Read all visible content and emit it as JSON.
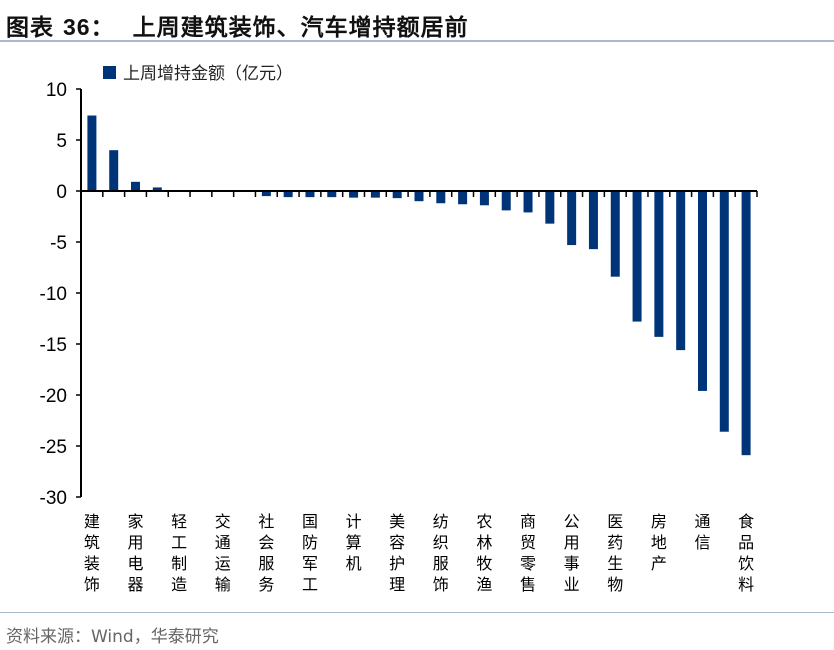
{
  "header": {
    "prefix": "图表",
    "number": "36：",
    "title": "上周建筑装饰、汽车增持额居前"
  },
  "source": "资料来源：Wind，华泰研究",
  "colors": {
    "bar": "#003478",
    "rule": "#a7b9cc"
  },
  "chart_data": {
    "type": "bar",
    "title": "上周建筑装饰、汽车增持额居前",
    "legend": {
      "position": "top-left",
      "entries": [
        "上周增持金额（亿元）"
      ]
    },
    "ylabel": "",
    "xlabel": "",
    "ylim": [
      -30,
      10
    ],
    "yticks": [
      10,
      5,
      0,
      -5,
      -10,
      -15,
      -20,
      -25,
      -30
    ],
    "grid": false,
    "categories": [
      "建筑装饰",
      "",
      "家用电器",
      "",
      "轻工制造",
      "",
      "交通运输",
      "",
      "社会服务",
      "",
      "国防军工",
      "",
      "计算机",
      "",
      "美容护理",
      "",
      "纺织服饰",
      "",
      "农林牧渔",
      "",
      "商贸零售",
      "",
      "公用事业",
      "",
      "医药生物",
      "",
      "房地产",
      "",
      "通信",
      "",
      "食品饮料"
    ],
    "series": [
      {
        "name": "上周增持金额（亿元）",
        "values": [
          7.4,
          4.0,
          0.9,
          0.35,
          0,
          0,
          0,
          0,
          -0.5,
          -0.6,
          -0.6,
          -0.6,
          -0.65,
          -0.65,
          -0.7,
          -1.0,
          -1.2,
          -1.3,
          -1.4,
          -1.9,
          -2.1,
          -3.2,
          -5.3,
          -5.7,
          -8.4,
          -12.8,
          -14.3,
          -15.6,
          -19.6,
          -23.6,
          -25.9
        ]
      }
    ]
  }
}
